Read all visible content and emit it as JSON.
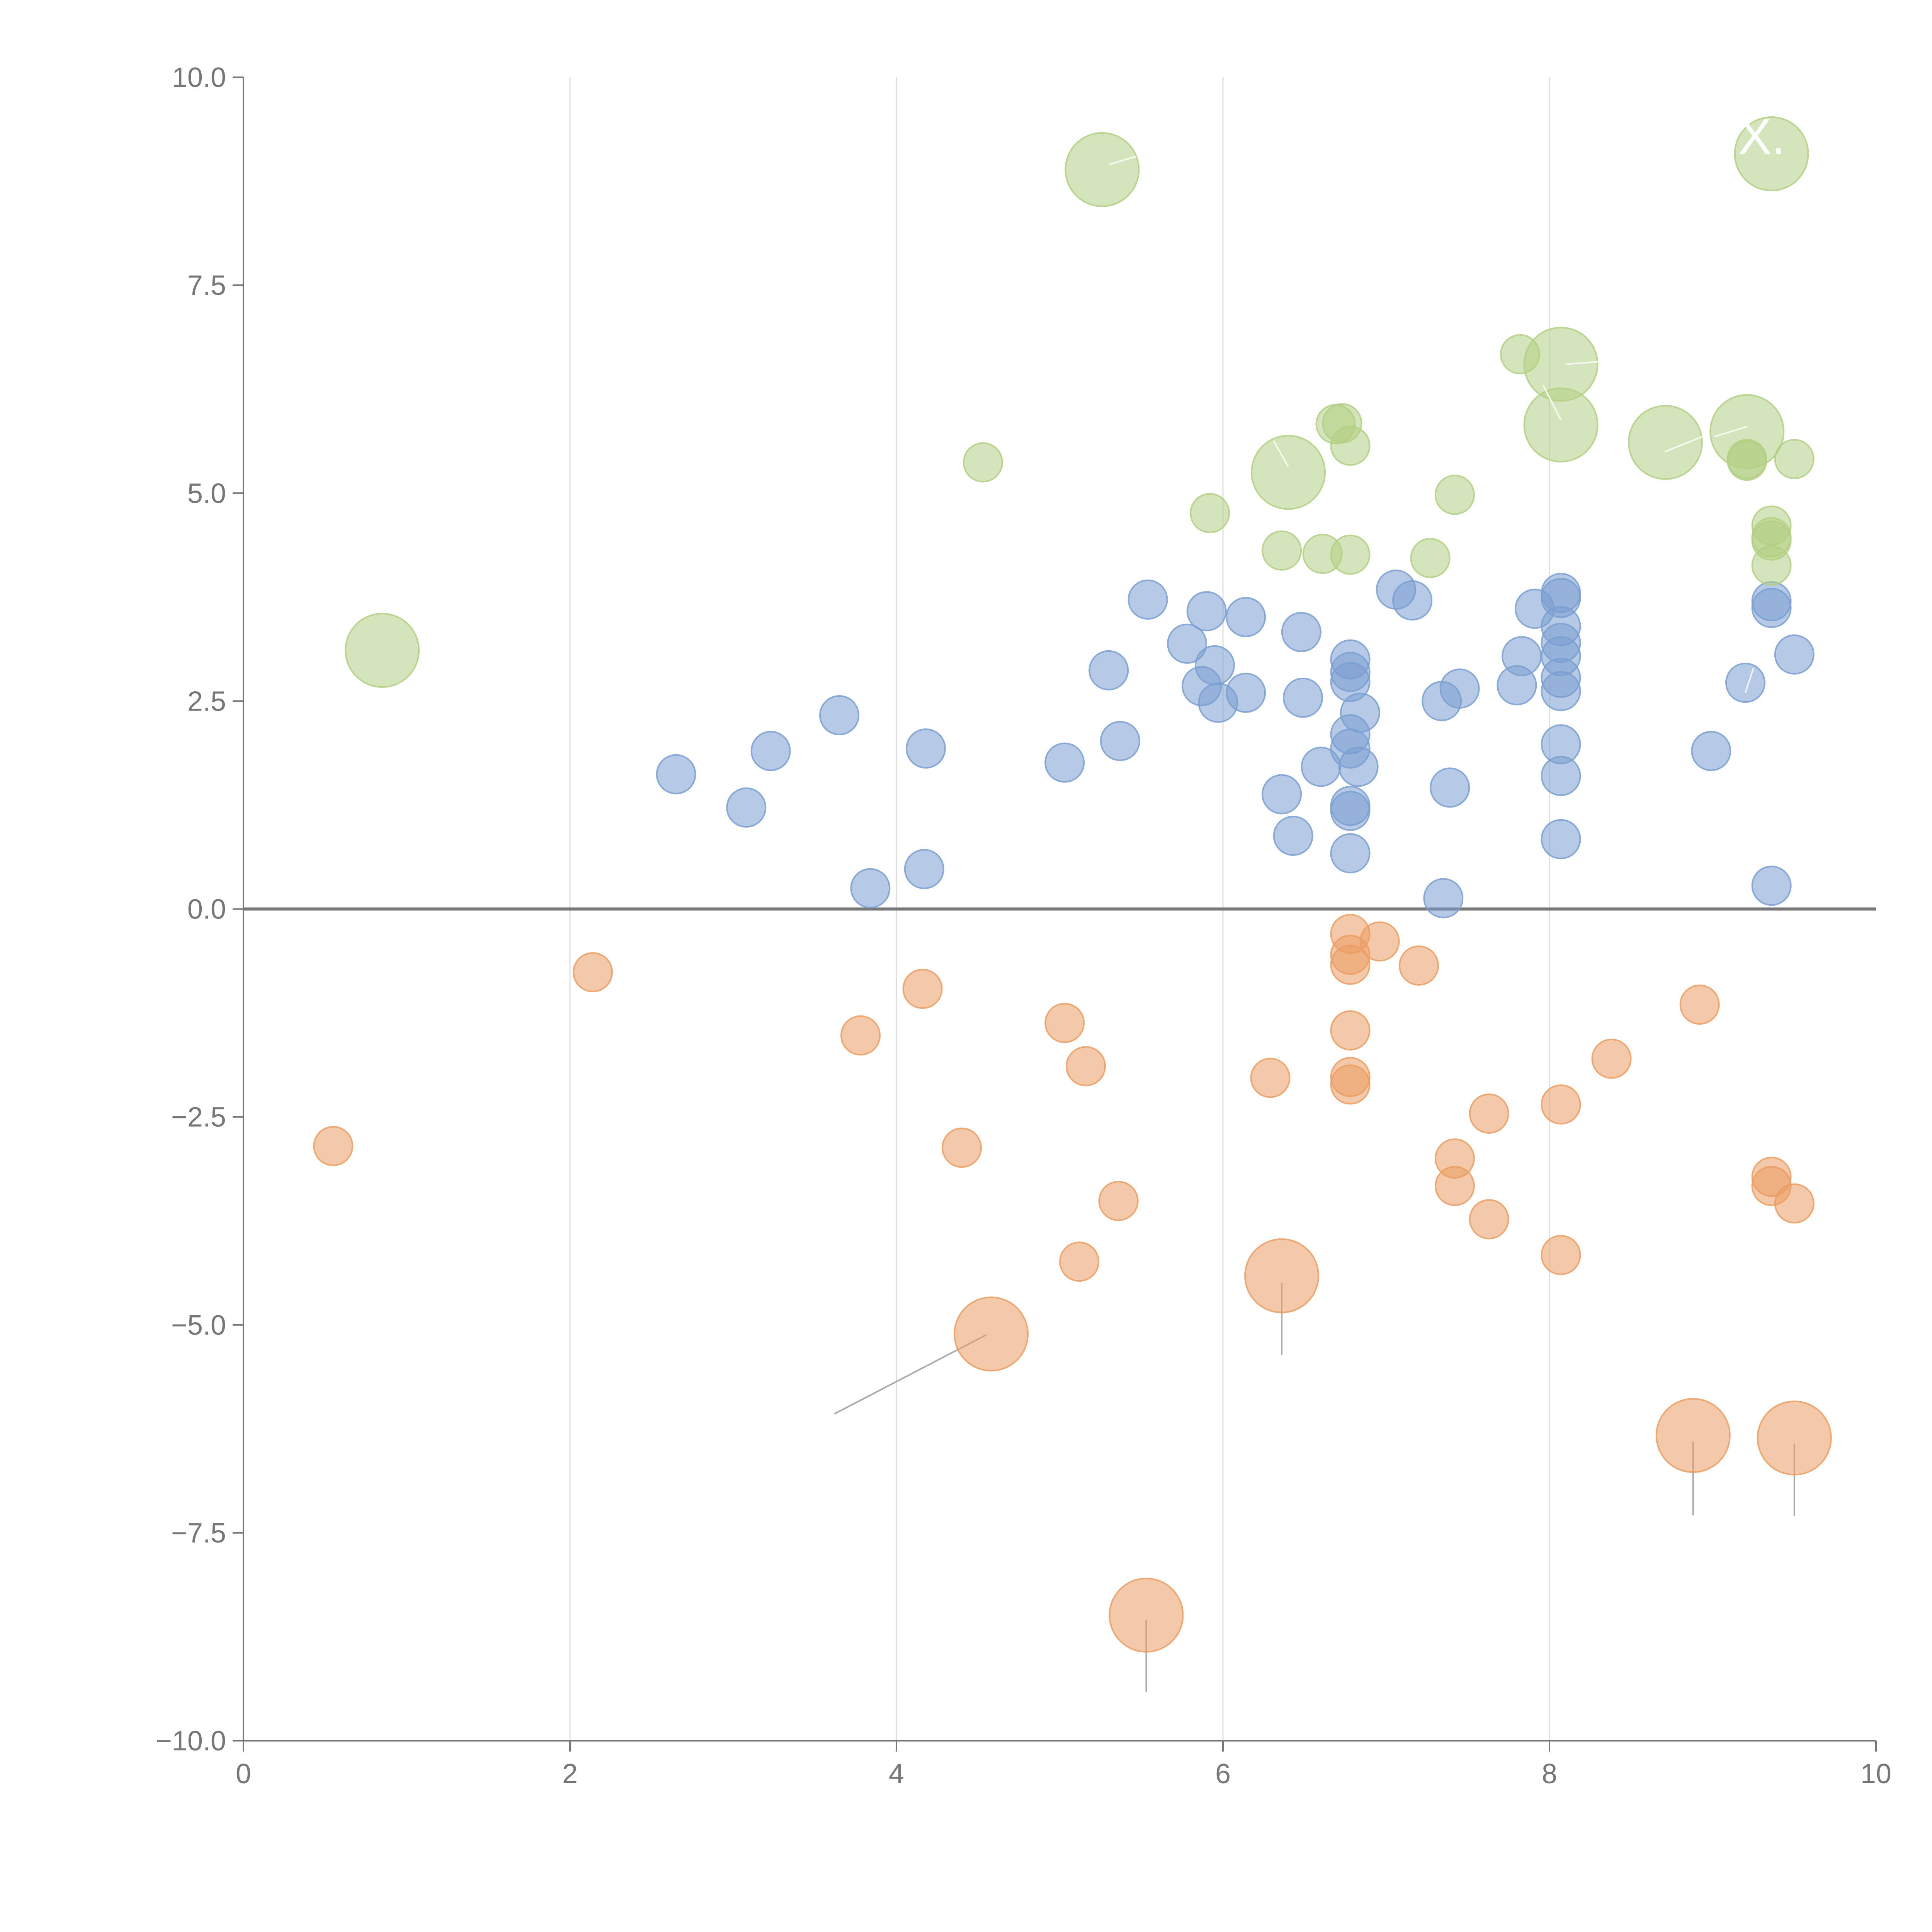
{
  "colors": {
    "blue": "#7a9fd1",
    "orange": "#eb9d63",
    "green": "#b3cf84",
    "axis": "#777777",
    "grid": "#dddddd",
    "background": "#ffffff"
  },
  "chart_data": {
    "type": "scatter",
    "title": "",
    "xlabel": "",
    "ylabel": "",
    "xlim": [
      0,
      10
    ],
    "ylim": [
      -10,
      10
    ],
    "x_ticks": [
      0,
      2,
      4,
      6,
      8,
      10
    ],
    "x_tick_labels": [
      "0",
      "2",
      "4",
      "6",
      "8",
      "10"
    ],
    "y_ticks": [
      10,
      7.5,
      5,
      2.5,
      0,
      -2.5,
      -5,
      -7.5,
      -10
    ],
    "y_tick_labels": [
      "10.0",
      "7.5",
      "5.0",
      "2.5",
      "0.0",
      "−2.5",
      "−5.0",
      "−7.5",
      "−10.0"
    ],
    "grid": "vertical",
    "legend": "none",
    "callout_text": "-X.",
    "series": [
      {
        "name": "blue",
        "color": "#7a9fd1",
        "points": [
          {
            "x": 2.65,
            "y": 1.62,
            "s": 1
          },
          {
            "x": 3.08,
            "y": 1.22,
            "s": 1
          },
          {
            "x": 3.23,
            "y": 1.9,
            "s": 1
          },
          {
            "x": 3.65,
            "y": 2.33,
            "s": 1
          },
          {
            "x": 3.84,
            "y": 0.25,
            "s": 1
          },
          {
            "x": 4.18,
            "y": 1.93,
            "s": 1
          },
          {
            "x": 4.17,
            "y": 0.48,
            "s": 1
          },
          {
            "x": 5.03,
            "y": 1.76,
            "s": 1
          },
          {
            "x": 5.37,
            "y": 2.02,
            "s": 1
          },
          {
            "x": 5.3,
            "y": 2.87,
            "s": 1
          },
          {
            "x": 5.54,
            "y": 3.72,
            "s": 1
          },
          {
            "x": 5.78,
            "y": 3.19,
            "s": 1
          },
          {
            "x": 5.9,
            "y": 3.58,
            "s": 1
          },
          {
            "x": 5.87,
            "y": 2.68,
            "s": 1
          },
          {
            "x": 5.95,
            "y": 2.93,
            "s": 1
          },
          {
            "x": 5.97,
            "y": 2.48,
            "s": 1
          },
          {
            "x": 6.14,
            "y": 3.51,
            "s": 1
          },
          {
            "x": 6.14,
            "y": 2.6,
            "s": 1
          },
          {
            "x": 6.48,
            "y": 3.33,
            "s": 1
          },
          {
            "x": 6.49,
            "y": 2.54,
            "s": 1
          },
          {
            "x": 6.36,
            "y": 1.38,
            "s": 1
          },
          {
            "x": 6.43,
            "y": 0.88,
            "s": 1
          },
          {
            "x": 6.6,
            "y": 1.71,
            "s": 1
          },
          {
            "x": 6.78,
            "y": 3.0,
            "s": 1
          },
          {
            "x": 6.78,
            "y": 2.85,
            "s": 1
          },
          {
            "x": 6.78,
            "y": 2.73,
            "s": 1
          },
          {
            "x": 6.84,
            "y": 2.36,
            "s": 1
          },
          {
            "x": 6.78,
            "y": 2.1,
            "s": 1
          },
          {
            "x": 6.78,
            "y": 1.93,
            "s": 1
          },
          {
            "x": 6.83,
            "y": 1.71,
            "s": 1
          },
          {
            "x": 6.78,
            "y": 1.24,
            "s": 1
          },
          {
            "x": 6.78,
            "y": 1.18,
            "s": 1
          },
          {
            "x": 6.78,
            "y": 0.67,
            "s": 1
          },
          {
            "x": 7.06,
            "y": 3.84,
            "s": 1
          },
          {
            "x": 7.16,
            "y": 3.71,
            "s": 1
          },
          {
            "x": 7.34,
            "y": 2.5,
            "s": 1
          },
          {
            "x": 7.45,
            "y": 2.65,
            "s": 1
          },
          {
            "x": 7.39,
            "y": 1.46,
            "s": 1
          },
          {
            "x": 7.35,
            "y": 0.13,
            "s": 1
          },
          {
            "x": 7.91,
            "y": 3.61,
            "s": 1
          },
          {
            "x": 7.83,
            "y": 3.04,
            "s": 1
          },
          {
            "x": 7.8,
            "y": 2.69,
            "s": 1
          },
          {
            "x": 8.07,
            "y": 3.8,
            "s": 1
          },
          {
            "x": 8.07,
            "y": 3.74,
            "s": 1
          },
          {
            "x": 8.07,
            "y": 3.4,
            "s": 1
          },
          {
            "x": 8.07,
            "y": 3.2,
            "s": 1
          },
          {
            "x": 8.07,
            "y": 3.04,
            "s": 1
          },
          {
            "x": 8.07,
            "y": 2.78,
            "s": 1
          },
          {
            "x": 8.07,
            "y": 2.62,
            "s": 1
          },
          {
            "x": 8.07,
            "y": 1.98,
            "s": 1
          },
          {
            "x": 8.07,
            "y": 1.6,
            "s": 1
          },
          {
            "x": 8.07,
            "y": 0.84,
            "s": 1
          },
          {
            "x": 8.99,
            "y": 1.9,
            "s": 1
          },
          {
            "x": 9.2,
            "y": 2.72,
            "s": 1
          },
          {
            "x": 9.36,
            "y": 3.7,
            "s": 1
          },
          {
            "x": 9.36,
            "y": 3.62,
            "s": 1
          },
          {
            "x": 9.5,
            "y": 3.06,
            "s": 1
          },
          {
            "x": 9.36,
            "y": 0.28,
            "s": 1
          }
        ]
      },
      {
        "name": "orange",
        "color": "#eb9d63",
        "points": [
          {
            "x": 0.55,
            "y": -2.85,
            "s": 1
          },
          {
            "x": 2.14,
            "y": -0.76,
            "s": 1
          },
          {
            "x": 3.78,
            "y": -1.52,
            "s": 1
          },
          {
            "x": 4.16,
            "y": -0.96,
            "s": 1
          },
          {
            "x": 4.4,
            "y": -2.87,
            "s": 1
          },
          {
            "x": 4.58,
            "y": -5.11,
            "s": 2
          },
          {
            "x": 5.03,
            "y": -1.37,
            "s": 1
          },
          {
            "x": 5.16,
            "y": -1.89,
            "s": 1
          },
          {
            "x": 5.12,
            "y": -4.24,
            "s": 1
          },
          {
            "x": 5.36,
            "y": -3.51,
            "s": 1
          },
          {
            "x": 5.53,
            "y": -8.49,
            "s": 2
          },
          {
            "x": 6.29,
            "y": -2.03,
            "s": 1
          },
          {
            "x": 6.36,
            "y": -4.41,
            "s": 2
          },
          {
            "x": 6.78,
            "y": -0.3,
            "s": 1
          },
          {
            "x": 6.78,
            "y": -0.55,
            "s": 1
          },
          {
            "x": 6.78,
            "y": -0.67,
            "s": 1
          },
          {
            "x": 6.96,
            "y": -0.39,
            "s": 1
          },
          {
            "x": 6.78,
            "y": -1.46,
            "s": 1
          },
          {
            "x": 6.78,
            "y": -2.02,
            "s": 1
          },
          {
            "x": 6.78,
            "y": -2.11,
            "s": 1
          },
          {
            "x": 7.2,
            "y": -0.68,
            "s": 1
          },
          {
            "x": 7.42,
            "y": -3.0,
            "s": 1
          },
          {
            "x": 7.42,
            "y": -3.33,
            "s": 1
          },
          {
            "x": 7.63,
            "y": -2.46,
            "s": 1
          },
          {
            "x": 7.63,
            "y": -3.73,
            "s": 1
          },
          {
            "x": 8.07,
            "y": -2.35,
            "s": 1
          },
          {
            "x": 8.07,
            "y": -4.16,
            "s": 1
          },
          {
            "x": 8.38,
            "y": -1.8,
            "s": 1
          },
          {
            "x": 8.92,
            "y": -1.15,
            "s": 1
          },
          {
            "x": 8.88,
            "y": -6.33,
            "s": 2
          },
          {
            "x": 9.36,
            "y": -3.22,
            "s": 1
          },
          {
            "x": 9.36,
            "y": -3.33,
            "s": 1
          },
          {
            "x": 9.5,
            "y": -3.54,
            "s": 1
          },
          {
            "x": 9.5,
            "y": -6.36,
            "s": 2
          }
        ]
      },
      {
        "name": "green",
        "color": "#b3cf84",
        "points": [
          {
            "x": 0.85,
            "y": 3.11,
            "s": 2
          },
          {
            "x": 4.53,
            "y": 5.37,
            "s": 1
          },
          {
            "x": 5.26,
            "y": 8.89,
            "s": 2
          },
          {
            "x": 5.92,
            "y": 4.76,
            "s": 1
          },
          {
            "x": 6.36,
            "y": 4.31,
            "s": 1
          },
          {
            "x": 6.4,
            "y": 5.25,
            "s": 2
          },
          {
            "x": 6.61,
            "y": 4.27,
            "s": 1
          },
          {
            "x": 6.69,
            "y": 5.83,
            "s": 1
          },
          {
            "x": 6.73,
            "y": 5.84,
            "s": 1
          },
          {
            "x": 6.78,
            "y": 5.57,
            "s": 1
          },
          {
            "x": 6.78,
            "y": 4.26,
            "s": 1
          },
          {
            "x": 7.27,
            "y": 4.22,
            "s": 1
          },
          {
            "x": 7.42,
            "y": 4.98,
            "s": 1
          },
          {
            "x": 7.82,
            "y": 6.67,
            "s": 1
          },
          {
            "x": 8.07,
            "y": 6.55,
            "s": 2
          },
          {
            "x": 8.07,
            "y": 5.82,
            "s": 2
          },
          {
            "x": 8.71,
            "y": 5.61,
            "s": 2
          },
          {
            "x": 9.21,
            "y": 5.74,
            "s": 2
          },
          {
            "x": 9.21,
            "y": 5.41,
            "s": 1
          },
          {
            "x": 9.21,
            "y": 5.39,
            "s": 1
          },
          {
            "x": 9.36,
            "y": 4.61,
            "s": 1
          },
          {
            "x": 9.36,
            "y": 4.47,
            "s": 1
          },
          {
            "x": 9.36,
            "y": 4.43,
            "s": 1
          },
          {
            "x": 9.36,
            "y": 4.13,
            "s": 1
          },
          {
            "x": 9.5,
            "y": 5.41,
            "s": 1
          },
          {
            "x": 9.36,
            "y": 9.08,
            "s": 2
          }
        ]
      }
    ],
    "leader_lines": [
      {
        "x1": 4.55,
        "y1": -5.12,
        "x2": 3.62,
        "y2": -6.07
      },
      {
        "x1": 6.36,
        "y1": -4.5,
        "x2": 6.36,
        "y2": -5.36
      },
      {
        "x1": 5.53,
        "y1": -8.55,
        "x2": 5.53,
        "y2": -9.41
      },
      {
        "x1": 8.88,
        "y1": -6.4,
        "x2": 8.88,
        "y2": -7.29
      },
      {
        "x1": 9.5,
        "y1": -6.43,
        "x2": 9.5,
        "y2": -7.3
      }
    ],
    "callout_lines": [
      {
        "x1": 5.3,
        "y1": 8.95,
        "x2": 5.47,
        "y2": 9.05
      },
      {
        "x1": 6.4,
        "y1": 5.32,
        "x2": 6.31,
        "y2": 5.63
      },
      {
        "x1": 8.07,
        "y1": 5.88,
        "x2": 7.96,
        "y2": 6.3
      },
      {
        "x1": 8.1,
        "y1": 6.55,
        "x2": 8.3,
        "y2": 6.58
      },
      {
        "x1": 8.71,
        "y1": 5.5,
        "x2": 8.95,
        "y2": 5.69
      },
      {
        "x1": 9.21,
        "y1": 5.8,
        "x2": 9.01,
        "y2": 5.68
      },
      {
        "x1": 9.2,
        "y1": 2.6,
        "x2": 9.25,
        "y2": 2.9
      }
    ]
  }
}
